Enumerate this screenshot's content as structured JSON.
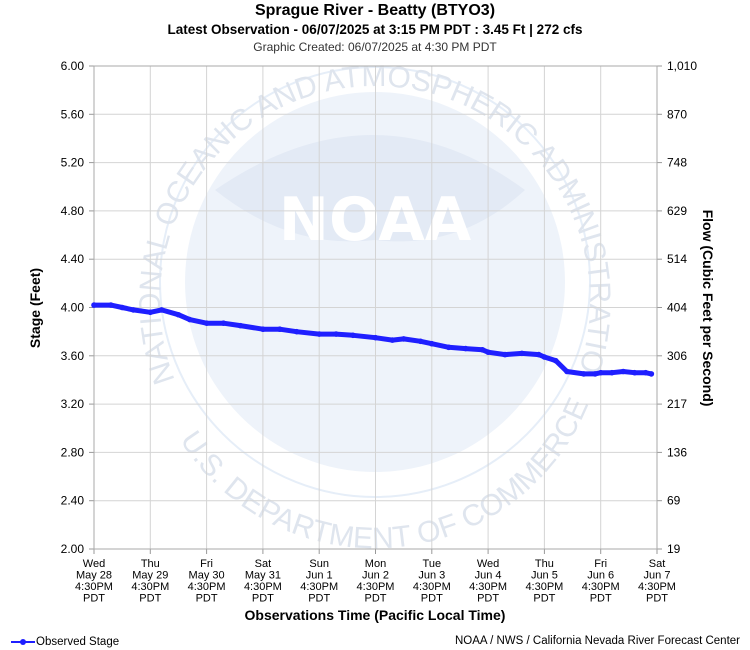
{
  "header": {
    "title": "Sprague River - Beatty (BTYO3)",
    "subtitle": "Latest Observation - 06/07/2025 at 3:15 PM PDT : 3.45 Ft | 272 cfs",
    "created": "Graphic Created: 06/07/2025 at 4:30 PM PDT"
  },
  "watermark": {
    "logo_text": "NOAA",
    "ring_text": "NATIONAL OCEANIC AND ATMOSPHERIC ADMINISTRATION · U.S. DEPARTMENT OF COMMERCE"
  },
  "footer": {
    "legend_label": "Observed Stage",
    "credit": "NOAA / NWS / California Nevada River Forecast Center"
  },
  "colors": {
    "series": "#1f1fff",
    "grid": "#d4d4d4",
    "watermark": "#e6eef8"
  },
  "chart_data": {
    "type": "line",
    "xlabel": "Observations Time (Pacific Local Time)",
    "ylabel": "Stage (Feet)",
    "y2label": "Flow (Cubic Feet per Second)",
    "ylim": [
      2.0,
      6.0
    ],
    "y_ticks": [
      "2.00",
      "2.40",
      "2.80",
      "3.20",
      "3.60",
      "4.00",
      "4.40",
      "4.80",
      "5.20",
      "5.60",
      "6.00"
    ],
    "y2_ticks": [
      "19",
      "69",
      "136",
      "217",
      "306",
      "404",
      "514",
      "629",
      "748",
      "870",
      "1,010"
    ],
    "x_range_days": [
      "Wed May 28 4:30PM",
      "Sat Jun 7 4:30PM"
    ],
    "x_ticks": [
      [
        "Wed",
        "May 28",
        "4:30PM",
        "PDT"
      ],
      [
        "Thu",
        "May 29",
        "4:30PM",
        "PDT"
      ],
      [
        "Fri",
        "May 30",
        "4:30PM",
        "PDT"
      ],
      [
        "Sat",
        "May 31",
        "4:30PM",
        "PDT"
      ],
      [
        "Sun",
        "Jun 1",
        "4:30PM",
        "PDT"
      ],
      [
        "Mon",
        "Jun 2",
        "4:30PM",
        "PDT"
      ],
      [
        "Tue",
        "Jun 3",
        "4:30PM",
        "PDT"
      ],
      [
        "Wed",
        "Jun 4",
        "4:30PM",
        "PDT"
      ],
      [
        "Thu",
        "Jun 5",
        "4:30PM",
        "PDT"
      ],
      [
        "Fri",
        "Jun 6",
        "4:30PM",
        "PDT"
      ],
      [
        "Sat",
        "Jun 7",
        "4:30PM",
        "PDT"
      ]
    ],
    "grid": true,
    "legend": "bottom-left",
    "series": [
      {
        "name": "Observed Stage",
        "x": [
          0.0,
          0.3,
          0.5,
          0.7,
          1.0,
          1.2,
          1.5,
          1.7,
          2.0,
          2.3,
          2.6,
          3.0,
          3.3,
          3.6,
          4.0,
          4.3,
          4.6,
          5.0,
          5.3,
          5.5,
          5.8,
          6.0,
          6.3,
          6.6,
          6.9,
          7.0,
          7.3,
          7.6,
          7.9,
          8.0,
          8.2,
          8.4,
          8.7,
          8.9,
          9.0,
          9.2,
          9.4,
          9.6,
          9.8,
          9.9
        ],
        "y": [
          4.02,
          4.02,
          4.0,
          3.98,
          3.96,
          3.98,
          3.94,
          3.9,
          3.87,
          3.87,
          3.85,
          3.82,
          3.82,
          3.8,
          3.78,
          3.78,
          3.77,
          3.75,
          3.73,
          3.74,
          3.72,
          3.7,
          3.67,
          3.66,
          3.65,
          3.63,
          3.61,
          3.62,
          3.61,
          3.59,
          3.56,
          3.47,
          3.45,
          3.45,
          3.46,
          3.46,
          3.47,
          3.46,
          3.46,
          3.45
        ]
      }
    ]
  }
}
